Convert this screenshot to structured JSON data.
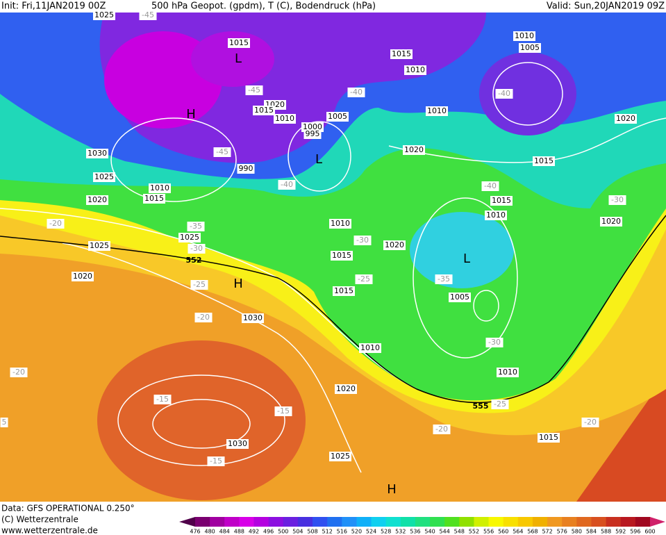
{
  "header": {
    "init": "Init: Fri,11JAN2019 00Z",
    "title": "500 hPa Geopot. (gpdm), T (C), Bodendruck (hPa)",
    "valid": "Valid: Sun,20JAN2019 09Z"
  },
  "map": {
    "labels": [
      "1025",
      "1015",
      "1015",
      "1010",
      "1010",
      "1005",
      "1020",
      "1015",
      "1010",
      "1005",
      "1000",
      "995",
      "1010",
      "1020",
      "1020",
      "1015",
      "990",
      "1030",
      "1025",
      "1010",
      "1015",
      "1020",
      "1015",
      "1010",
      "1020",
      "1010",
      "1025",
      "1020",
      "1025",
      "1015",
      "1020",
      "1015",
      "1005",
      "1030",
      "1010",
      "1010",
      "1020",
      "1030",
      "1025",
      "1015",
      "-45",
      "-45",
      "-40",
      "-40",
      "-45",
      "-40",
      "-40",
      "-30",
      "-20",
      "-35",
      "-30",
      "-30",
      "-25",
      "-25",
      "-35",
      "-20",
      "-30",
      "-20",
      "-15",
      "-15",
      "-25",
      "-20",
      "-20",
      "-15",
      "5",
      "552",
      "555",
      "L",
      "H",
      "L",
      "H",
      "L",
      "H"
    ]
  },
  "footer": {
    "data": "Data: GFS OPERATIONAL 0.250°",
    "copyright": "(C) Wetterzentrale",
    "url": "www.wetterzentrale.de"
  },
  "legend": {
    "levels": [
      476,
      480,
      484,
      488,
      492,
      496,
      500,
      504,
      508,
      512,
      516,
      520,
      524,
      528,
      532,
      536,
      540,
      544,
      548,
      552,
      556,
      560,
      564,
      568,
      572,
      576,
      580,
      584,
      588,
      592,
      596,
      600
    ]
  }
}
